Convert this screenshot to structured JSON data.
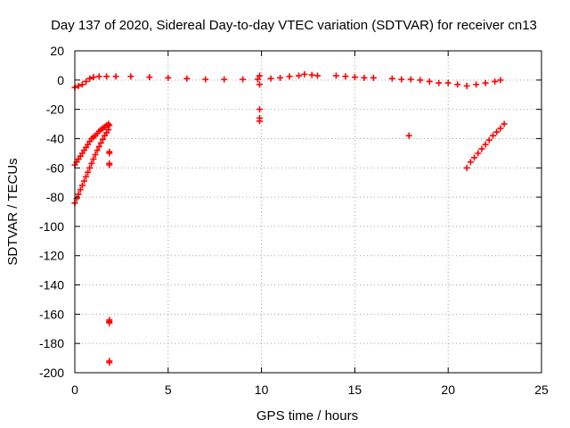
{
  "chart_data": {
    "type": "scatter",
    "title": "Day 137 of 2020, Sidereal Day-to-day VTEC variation (SDTVAR) for receiver cn13",
    "xlabel": "GPS time / hours",
    "ylabel": "SDTVAR / TECUs",
    "xlim": [
      0,
      25
    ],
    "ylim": [
      -200,
      20
    ],
    "x_ticks": [
      0,
      5,
      10,
      15,
      20,
      25
    ],
    "y_ticks": [
      20,
      0,
      -20,
      -40,
      -60,
      -80,
      -100,
      -120,
      -140,
      -160,
      -180,
      -200
    ],
    "grid": true,
    "marker": "+",
    "color": "#ff0000",
    "series": [
      {
        "name": "main-trace",
        "points": [
          [
            0.0,
            -5
          ],
          [
            0.2,
            -4
          ],
          [
            0.4,
            -3
          ],
          [
            0.6,
            -1
          ],
          [
            0.8,
            1
          ],
          [
            1.0,
            2
          ],
          [
            1.3,
            2.5
          ],
          [
            1.7,
            2.5
          ],
          [
            2.2,
            2.5
          ],
          [
            3.0,
            2.5
          ],
          [
            4.0,
            2
          ],
          [
            5.0,
            1.5
          ],
          [
            6.0,
            1
          ],
          [
            7.0,
            0.5
          ],
          [
            8.0,
            0.5
          ],
          [
            9.0,
            0.5
          ],
          [
            9.8,
            0.5
          ],
          [
            10.5,
            1
          ],
          [
            11.0,
            1.5
          ],
          [
            11.5,
            2.5
          ],
          [
            12.0,
            3
          ],
          [
            12.3,
            4
          ],
          [
            12.7,
            3.5
          ],
          [
            13.0,
            3
          ],
          [
            14.0,
            3
          ],
          [
            14.5,
            2.5
          ],
          [
            15.0,
            2
          ],
          [
            15.5,
            1.5
          ],
          [
            16.0,
            1.5
          ],
          [
            17.0,
            1
          ],
          [
            17.5,
            0.5
          ],
          [
            18.0,
            0.5
          ],
          [
            18.5,
            0
          ],
          [
            19.0,
            -1
          ],
          [
            19.5,
            -2
          ],
          [
            20.0,
            -2
          ],
          [
            20.5,
            -3
          ],
          [
            21.0,
            -4
          ],
          [
            21.5,
            -3
          ],
          [
            22.0,
            -2
          ],
          [
            22.5,
            -1
          ],
          [
            22.8,
            0
          ]
        ]
      },
      {
        "name": "upper-arc",
        "points": [
          [
            0.0,
            -58
          ],
          [
            0.1,
            -56
          ],
          [
            0.2,
            -54
          ],
          [
            0.3,
            -52
          ],
          [
            0.4,
            -50
          ],
          [
            0.5,
            -48
          ],
          [
            0.6,
            -46
          ],
          [
            0.7,
            -44
          ],
          [
            0.8,
            -42
          ],
          [
            0.9,
            -40
          ],
          [
            1.0,
            -39
          ],
          [
            1.1,
            -38
          ],
          [
            1.2,
            -36.5
          ],
          [
            1.3,
            -35
          ],
          [
            1.4,
            -34
          ],
          [
            1.5,
            -33
          ],
          [
            1.6,
            -32
          ],
          [
            1.7,
            -31
          ],
          [
            1.8,
            -30
          ]
        ]
      },
      {
        "name": "lower-arc",
        "points": [
          [
            0.0,
            -84
          ],
          [
            0.1,
            -81
          ],
          [
            0.2,
            -78
          ],
          [
            0.3,
            -75
          ],
          [
            0.4,
            -72
          ],
          [
            0.5,
            -69
          ],
          [
            0.6,
            -66
          ],
          [
            0.7,
            -63
          ],
          [
            0.8,
            -60
          ],
          [
            0.9,
            -57
          ],
          [
            1.0,
            -54
          ],
          [
            1.1,
            -51
          ],
          [
            1.2,
            -48
          ],
          [
            1.3,
            -45.5
          ],
          [
            1.4,
            -43
          ],
          [
            1.5,
            -40.5
          ],
          [
            1.6,
            -38
          ],
          [
            1.7,
            -36
          ],
          [
            1.8,
            -34
          ]
        ]
      },
      {
        "name": "outliers",
        "points": [
          [
            1.85,
            -31
          ],
          [
            1.85,
            -49
          ],
          [
            1.85,
            -50
          ],
          [
            1.85,
            -57
          ],
          [
            1.85,
            -58
          ],
          [
            1.85,
            -164
          ],
          [
            1.85,
            -165
          ],
          [
            1.85,
            -166
          ],
          [
            1.85,
            -192
          ],
          [
            1.85,
            -193
          ],
          [
            9.9,
            3
          ],
          [
            9.9,
            -3
          ],
          [
            9.9,
            -20
          ],
          [
            9.9,
            -26
          ],
          [
            9.9,
            -28
          ],
          [
            17.9,
            -38
          ]
        ]
      },
      {
        "name": "late-arc",
        "points": [
          [
            21.0,
            -60
          ],
          [
            21.2,
            -56
          ],
          [
            21.4,
            -53
          ],
          [
            21.6,
            -50
          ],
          [
            21.8,
            -47
          ],
          [
            22.0,
            -44
          ],
          [
            22.2,
            -41
          ],
          [
            22.4,
            -38
          ],
          [
            22.6,
            -35.5
          ],
          [
            22.8,
            -33
          ],
          [
            23.0,
            -30
          ]
        ]
      }
    ]
  }
}
